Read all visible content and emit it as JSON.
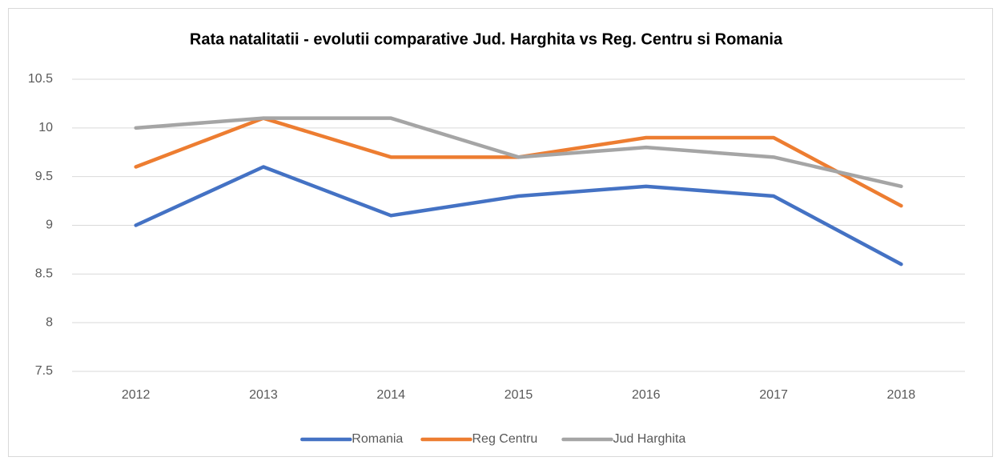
{
  "chart_data": {
    "type": "line",
    "title": "Rata natalitatii - evolutii comparative Jud. Harghita vs Reg. Centru si Romania",
    "categories": [
      "2012",
      "2013",
      "2014",
      "2015",
      "2016",
      "2017",
      "2018"
    ],
    "series": [
      {
        "name": "Romania",
        "color": "#4472c4",
        "values": [
          9.0,
          9.6,
          9.1,
          9.3,
          9.4,
          9.3,
          8.6
        ]
      },
      {
        "name": "Reg Centru",
        "color": "#ed7d31",
        "values": [
          9.6,
          10.1,
          9.7,
          9.7,
          9.9,
          9.9,
          9.2
        ]
      },
      {
        "name": "Jud Harghita",
        "color": "#a5a5a5",
        "values": [
          10.0,
          10.1,
          10.1,
          9.7,
          9.8,
          9.7,
          9.4
        ]
      }
    ],
    "ylim": [
      7.5,
      10.5
    ],
    "yticks": [
      7.5,
      8,
      8.5,
      9,
      9.5,
      10,
      10.5
    ],
    "grid": true,
    "legend": "bottom"
  }
}
